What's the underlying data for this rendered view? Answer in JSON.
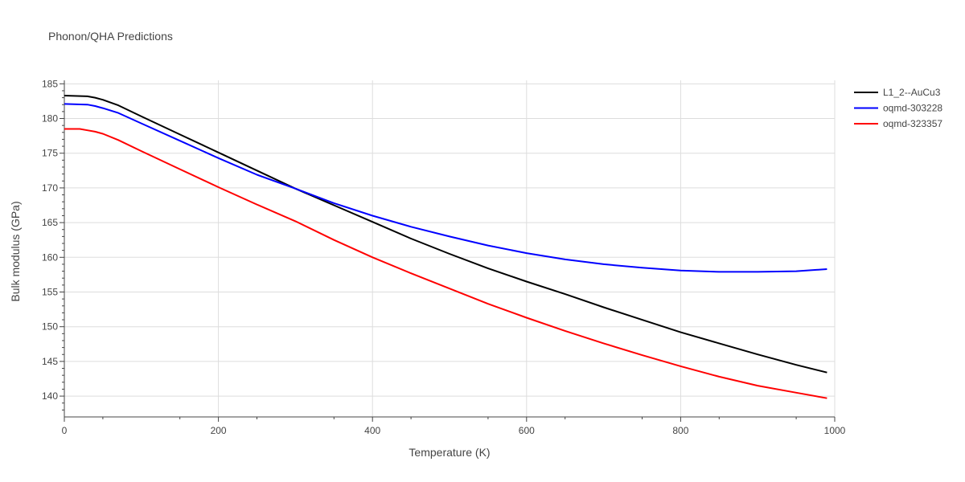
{
  "chart_data": {
    "type": "line",
    "title": "Phonon/QHA Predictions",
    "xlabel": "Temperature (K)",
    "ylabel": "Bulk modulus (GPa)",
    "xlim": [
      0,
      1000
    ],
    "ylim": [
      137,
      185.5
    ],
    "x_ticks": [
      0,
      200,
      400,
      600,
      800,
      1000
    ],
    "y_ticks": [
      140,
      145,
      150,
      155,
      160,
      165,
      170,
      175,
      180,
      185
    ],
    "grid": true,
    "legend_position": "top-right",
    "series": [
      {
        "name": "L1_2--AuCu3",
        "color": "#000000",
        "x": [
          0,
          30,
          40,
          50,
          70,
          100,
          150,
          200,
          250,
          300,
          350,
          400,
          450,
          500,
          550,
          600,
          650,
          700,
          750,
          800,
          850,
          900,
          950,
          990
        ],
        "y": [
          183.3,
          183.2,
          183.0,
          182.7,
          181.9,
          180.3,
          177.7,
          175.1,
          172.5,
          169.9,
          167.5,
          165.1,
          162.7,
          160.5,
          158.4,
          156.5,
          154.7,
          152.8,
          151.0,
          149.2,
          147.6,
          146.0,
          144.5,
          143.4
        ]
      },
      {
        "name": "oqmd-303228",
        "color": "#0000ff",
        "x": [
          0,
          30,
          40,
          50,
          70,
          100,
          150,
          200,
          250,
          300,
          350,
          400,
          450,
          500,
          550,
          600,
          650,
          700,
          750,
          800,
          850,
          900,
          950,
          990
        ],
        "y": [
          182.1,
          182.0,
          181.8,
          181.5,
          180.8,
          179.3,
          176.8,
          174.3,
          171.9,
          169.9,
          167.8,
          166.0,
          164.4,
          163.0,
          161.7,
          160.6,
          159.7,
          159.0,
          158.5,
          158.1,
          157.9,
          157.9,
          158.0,
          158.3
        ]
      },
      {
        "name": "oqmd-323357",
        "color": "#ff0000",
        "x": [
          0,
          20,
          30,
          40,
          50,
          70,
          100,
          150,
          200,
          250,
          300,
          350,
          400,
          450,
          500,
          550,
          600,
          650,
          700,
          750,
          800,
          850,
          900,
          950,
          990
        ],
        "y": [
          178.5,
          178.5,
          178.3,
          178.1,
          177.8,
          176.9,
          175.3,
          172.7,
          170.1,
          167.6,
          165.2,
          162.5,
          160.0,
          157.7,
          155.5,
          153.3,
          151.3,
          149.4,
          147.6,
          145.9,
          144.3,
          142.8,
          141.5,
          140.5,
          139.7
        ]
      }
    ]
  }
}
